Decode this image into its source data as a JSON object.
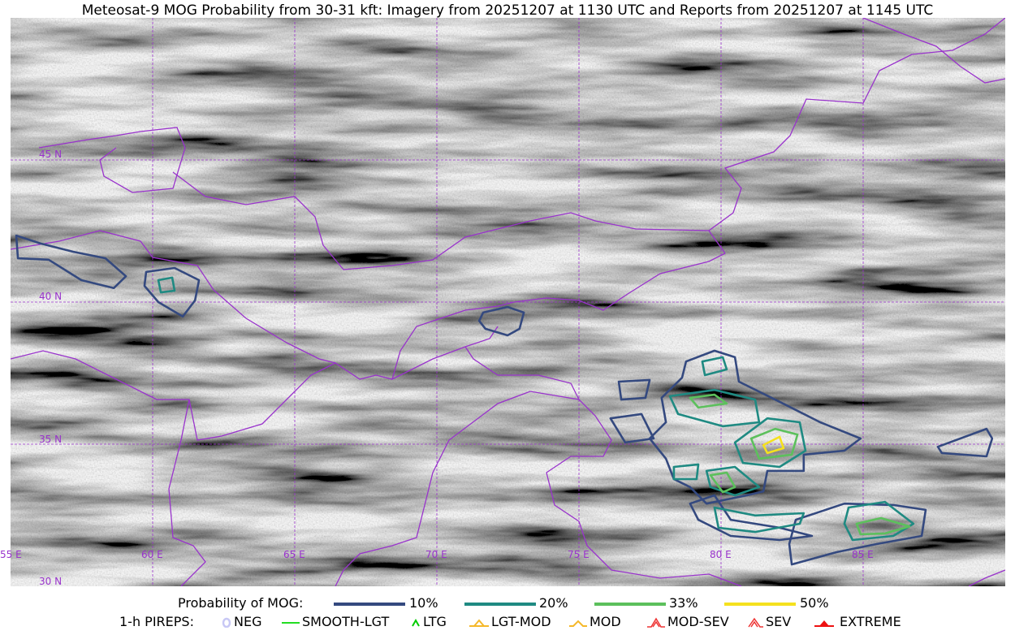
{
  "title": "Meteosat-9 MOG Probability from 30-31 kft: Imagery from 20251207 at 1130 UTC and Reports from 20251207 at 1145 UTC",
  "map": {
    "extent": {
      "lon": [
        55,
        90
      ],
      "lat": [
        30,
        50
      ]
    },
    "lat_labels": [
      "45 N",
      "40 N",
      "35 N",
      "30 N"
    ],
    "lon_labels": [
      "55 E",
      "60 E",
      "65 E",
      "70 E",
      "75 E",
      "80 E",
      "85 E"
    ],
    "gridline_color": "#9933cc",
    "border_color": "#9933cc",
    "contours": [
      {
        "level": "10%",
        "color": "#34497f",
        "points": [
          [
            55.2,
            42.34
          ],
          [
            56.06,
            42.06
          ],
          [
            57.2,
            41.77
          ],
          [
            58.34,
            41.54
          ],
          [
            59.06,
            40.91
          ],
          [
            58.63,
            40.49
          ],
          [
            57.49,
            40.77
          ],
          [
            56.34,
            41.49
          ],
          [
            55.26,
            41.54
          ]
        ]
      },
      {
        "level": "10%",
        "color": "#34497f",
        "points": [
          [
            59.77,
            41.06
          ],
          [
            60.77,
            41.2
          ],
          [
            61.63,
            40.77
          ],
          [
            61.49,
            40.06
          ],
          [
            61.06,
            39.49
          ],
          [
            60.2,
            40.0
          ],
          [
            59.71,
            40.57
          ]
        ]
      },
      {
        "level": "10%",
        "color": "#34497f",
        "points": [
          [
            71.63,
            39.63
          ],
          [
            72.49,
            39.83
          ],
          [
            73.06,
            39.63
          ],
          [
            72.91,
            39.06
          ],
          [
            72.49,
            38.83
          ],
          [
            71.71,
            39.06
          ],
          [
            71.49,
            39.34
          ]
        ]
      },
      {
        "level": "10%",
        "color": "#34497f",
        "points": [
          [
            78.77,
            37.91
          ],
          [
            79.77,
            38.29
          ],
          [
            80.49,
            38.06
          ],
          [
            80.63,
            37.2
          ],
          [
            82.06,
            36.49
          ],
          [
            83.49,
            35.77
          ],
          [
            84.91,
            35.2
          ],
          [
            84.34,
            34.77
          ],
          [
            82.91,
            34.63
          ],
          [
            82.91,
            34.06
          ],
          [
            81.63,
            34.06
          ],
          [
            81.49,
            33.34
          ],
          [
            80.91,
            33.2
          ],
          [
            79.49,
            32.91
          ],
          [
            78.91,
            33.49
          ],
          [
            78.34,
            33.77
          ],
          [
            78.06,
            34.49
          ],
          [
            77.49,
            35.2
          ],
          [
            78.06,
            35.77
          ],
          [
            77.91,
            36.63
          ],
          [
            78.63,
            37.34
          ]
        ]
      },
      {
        "level": "10%",
        "color": "#34497f",
        "points": [
          [
            82.63,
            32.34
          ],
          [
            84.34,
            32.91
          ],
          [
            86.06,
            32.86
          ],
          [
            87.2,
            32.69
          ],
          [
            87.06,
            31.77
          ],
          [
            85.49,
            31.49
          ],
          [
            84.06,
            31.2
          ],
          [
            82.49,
            30.77
          ],
          [
            82.4,
            31.49
          ]
        ]
      },
      {
        "level": "10%",
        "color": "#34497f",
        "points": [
          [
            78.91,
            32.91
          ],
          [
            79.77,
            33.2
          ],
          [
            80.34,
            32.34
          ],
          [
            82.06,
            32.06
          ],
          [
            83.2,
            31.77
          ],
          [
            82.06,
            31.63
          ],
          [
            80.34,
            31.77
          ],
          [
            79.2,
            32.34
          ]
        ]
      },
      {
        "level": "10%",
        "color": "#34497f",
        "points": [
          [
            87.63,
            34.91
          ],
          [
            89.34,
            35.54
          ],
          [
            89.54,
            35.2
          ],
          [
            89.34,
            34.57
          ],
          [
            87.77,
            34.69
          ]
        ]
      },
      {
        "level": "10%",
        "color": "#34497f",
        "points": [
          [
            76.4,
            37.2
          ],
          [
            77.49,
            37.26
          ],
          [
            77.34,
            36.63
          ],
          [
            76.49,
            36.57
          ]
        ]
      },
      {
        "level": "10%",
        "color": "#34497f",
        "points": [
          [
            76.11,
            35.91
          ],
          [
            77.2,
            36.06
          ],
          [
            77.63,
            35.2
          ],
          [
            76.63,
            35.06
          ]
        ]
      },
      {
        "level": "20%",
        "color": "#1f8a82",
        "points": [
          [
            60.2,
            40.77
          ],
          [
            60.69,
            40.86
          ],
          [
            60.77,
            40.4
          ],
          [
            60.29,
            40.34
          ]
        ]
      },
      {
        "level": "20%",
        "color": "#1f8a82",
        "points": [
          [
            78.2,
            36.69
          ],
          [
            79.77,
            36.91
          ],
          [
            81.2,
            36.57
          ],
          [
            81.34,
            35.77
          ],
          [
            80.06,
            35.63
          ],
          [
            78.49,
            36.06
          ]
        ]
      },
      {
        "level": "20%",
        "color": "#1f8a82",
        "points": [
          [
            80.49,
            35.06
          ],
          [
            81.63,
            35.91
          ],
          [
            82.77,
            35.77
          ],
          [
            82.97,
            34.77
          ],
          [
            82.06,
            34.2
          ],
          [
            80.77,
            34.34
          ]
        ]
      },
      {
        "level": "20%",
        "color": "#1f8a82",
        "points": [
          [
            79.77,
            32.77
          ],
          [
            81.2,
            32.49
          ],
          [
            82.91,
            32.57
          ],
          [
            82.77,
            32.2
          ],
          [
            81.2,
            31.91
          ],
          [
            79.91,
            32.06
          ]
        ]
      },
      {
        "level": "20%",
        "color": "#1f8a82",
        "points": [
          [
            84.49,
            32.77
          ],
          [
            85.77,
            32.97
          ],
          [
            86.77,
            32.2
          ],
          [
            86.06,
            31.77
          ],
          [
            84.63,
            31.63
          ],
          [
            84.34,
            32.2
          ]
        ]
      },
      {
        "level": "20%",
        "color": "#1f8a82",
        "points": [
          [
            79.34,
            37.91
          ],
          [
            80.06,
            38.06
          ],
          [
            80.2,
            37.63
          ],
          [
            79.43,
            37.43
          ]
        ]
      },
      {
        "level": "20%",
        "color": "#1f8a82",
        "points": [
          [
            78.34,
            34.2
          ],
          [
            79.2,
            34.29
          ],
          [
            79.14,
            33.77
          ],
          [
            78.34,
            33.77
          ]
        ]
      },
      {
        "level": "20%",
        "color": "#1f8a82",
        "points": [
          [
            79.49,
            34.06
          ],
          [
            80.49,
            34.2
          ],
          [
            81.34,
            33.49
          ],
          [
            80.49,
            33.2
          ],
          [
            79.63,
            33.49
          ]
        ]
      },
      {
        "level": "33%",
        "color": "#5cc05c",
        "points": [
          [
            78.91,
            36.63
          ],
          [
            79.77,
            36.74
          ],
          [
            80.2,
            36.43
          ],
          [
            79.2,
            36.29
          ]
        ]
      },
      {
        "level": "33%",
        "color": "#5cc05c",
        "points": [
          [
            81.06,
            35.2
          ],
          [
            81.91,
            35.54
          ],
          [
            82.69,
            35.34
          ],
          [
            82.49,
            34.63
          ],
          [
            81.34,
            34.49
          ]
        ]
      },
      {
        "level": "33%",
        "color": "#5cc05c",
        "points": [
          [
            79.63,
            33.91
          ],
          [
            80.2,
            34.0
          ],
          [
            80.49,
            33.49
          ],
          [
            80.06,
            33.31
          ]
        ]
      },
      {
        "level": "33%",
        "color": "#5cc05c",
        "points": [
          [
            84.77,
            32.2
          ],
          [
            85.63,
            32.4
          ],
          [
            86.63,
            32.11
          ],
          [
            85.77,
            31.86
          ],
          [
            84.91,
            31.83
          ]
        ]
      },
      {
        "level": "50%",
        "color": "#f5e11e",
        "points": [
          [
            81.49,
            34.97
          ],
          [
            82.06,
            35.26
          ],
          [
            82.2,
            34.86
          ],
          [
            81.63,
            34.69
          ]
        ]
      }
    ]
  },
  "legend": {
    "probability_label": "Probability of MOG:",
    "levels": [
      {
        "label": "10%",
        "color": "#34497f"
      },
      {
        "label": "20%",
        "color": "#1f8a82"
      },
      {
        "label": "33%",
        "color": "#5cc05c"
      },
      {
        "label": "50%",
        "color": "#f5e11e"
      }
    ],
    "pireps_label": "1-h PIREPS:",
    "pireps": [
      {
        "label": "NEG",
        "icon": "neg-circle-icon",
        "color": "#c8c8f5"
      },
      {
        "label": "SMOOTH-LGT",
        "icon": "line-icon",
        "color": "#22dd22"
      },
      {
        "label": "LTG",
        "icon": "caret-icon",
        "color": "#00cc00"
      },
      {
        "label": "LGT-MOD",
        "icon": "caret-bar-icon",
        "color": "#f5b82a"
      },
      {
        "label": "MOD",
        "icon": "caret-icon",
        "color": "#f5b82a"
      },
      {
        "label": "MOD-SEV",
        "icon": "double-caret-icon",
        "color": "#ee3333"
      },
      {
        "label": "SEV",
        "icon": "double-caret-icon",
        "color": "#ee3333"
      },
      {
        "label": "EXTREME",
        "icon": "filled-triangle-icon",
        "color": "#ee1111"
      }
    ]
  }
}
